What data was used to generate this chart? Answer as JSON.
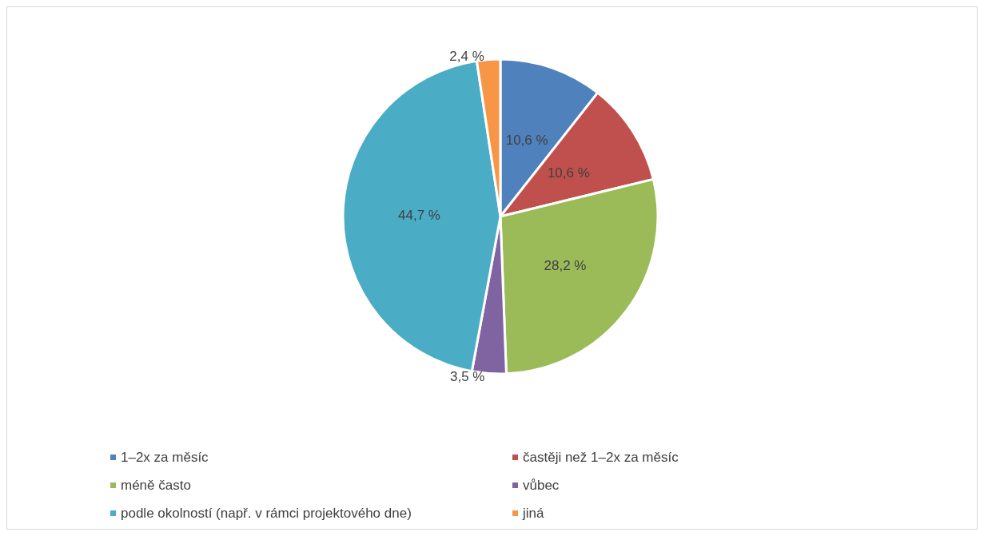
{
  "chart_data": {
    "type": "pie",
    "categories": [
      "1–2x za měsíc",
      "častěji než 1–2x za měsíc",
      "méně často",
      "vůbec",
      "podle okolností (např. v rámci projektového dne)",
      "jiná"
    ],
    "values": [
      10.6,
      10.6,
      28.2,
      3.5,
      44.7,
      2.4
    ],
    "value_labels": [
      "10,6 %",
      "10,6 %",
      "28,2 %",
      "3,5 %",
      "44,7 %",
      "2,4 %"
    ],
    "colors": [
      "#4f81bd",
      "#c0504d",
      "#9bbb59",
      "#8064a2",
      "#4bacc6",
      "#f79646"
    ],
    "legend": "bottom"
  }
}
